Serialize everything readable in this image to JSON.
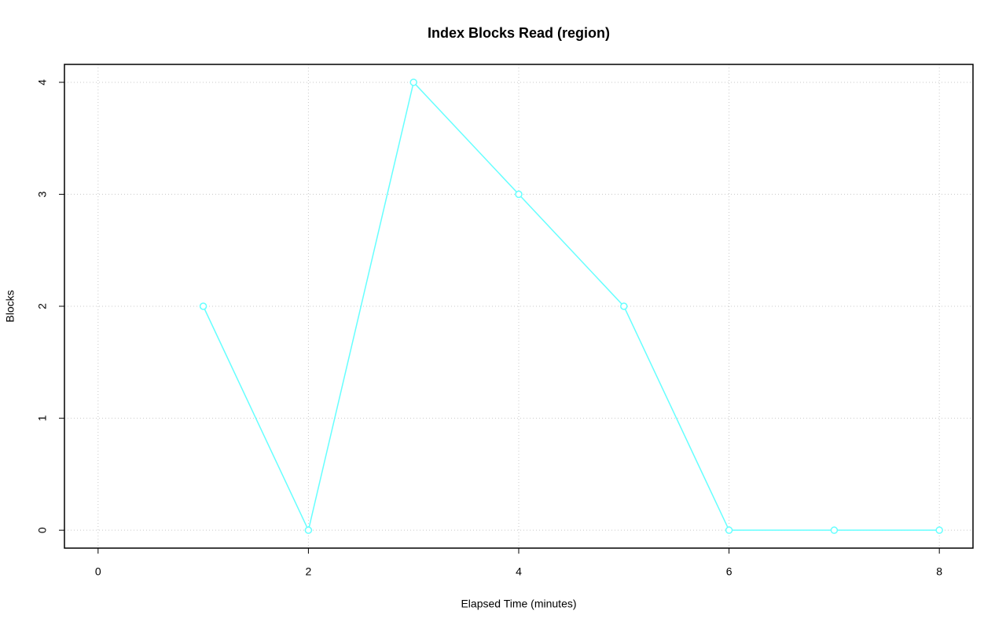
{
  "chart_data": {
    "type": "line",
    "title": "Index Blocks Read (region)",
    "x_label": "Elapsed Time (minutes)",
    "y_label": "Blocks",
    "x": [
      1,
      2,
      3,
      4,
      5,
      6,
      7,
      8
    ],
    "series": [
      {
        "color": "#66ffff",
        "values": [
          2,
          0,
          4,
          3,
          2,
          0,
          0,
          0
        ]
      }
    ],
    "xlim": [
      -0.32,
      8.32
    ],
    "xticks": [
      0,
      2,
      4,
      6,
      8
    ],
    "ylim": [
      -0.16,
      4.16
    ],
    "yticks": [
      0,
      1,
      2,
      3,
      4
    ],
    "grid": true
  }
}
